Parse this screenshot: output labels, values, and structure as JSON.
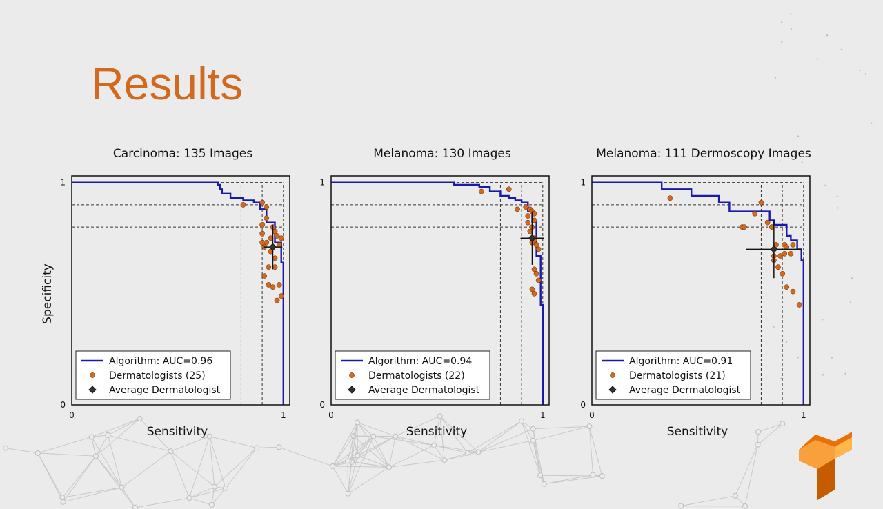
{
  "slide": {
    "title": "Results",
    "colors": {
      "title": "#d2691e",
      "algorithm": "#1a1aaa",
      "dermatologist": "#d2691e",
      "average": "#333333",
      "background": "#ebebeb"
    },
    "logo_icon": "tensorflow-logo-icon"
  },
  "legend": {
    "algorithm_prefix": "Algorithm: ",
    "average_label": "Average Dermatologist"
  },
  "chart_data": [
    {
      "type": "line",
      "title": "Carcinoma: 135 Images",
      "xlabel": "Sensitivity",
      "ylabel": "Specificity",
      "xlim": [
        0,
        1.03
      ],
      "ylim": [
        0,
        1.03
      ],
      "x_ticks": [
        "0",
        "1"
      ],
      "y_ticks": [
        "0",
        "1"
      ],
      "grid": false,
      "legend_position": "lower-left",
      "reference_lines": {
        "vertical": [
          0.8,
          0.9,
          1.0
        ],
        "horizontal": [
          0.9,
          0.8
        ]
      },
      "series": [
        {
          "name": "Algorithm: AUC=0.96",
          "kind": "line",
          "x": [
            0,
            0.69,
            0.69,
            0.7,
            0.7,
            0.71,
            0.71,
            0.75,
            0.75,
            0.81,
            0.81,
            0.86,
            0.86,
            0.89,
            0.89,
            0.92,
            0.92,
            0.96,
            0.96,
            0.99,
            0.99,
            1.0,
            1.0
          ],
          "y": [
            1,
            1,
            0.99,
            0.99,
            0.97,
            0.97,
            0.95,
            0.95,
            0.93,
            0.93,
            0.92,
            0.92,
            0.91,
            0.91,
            0.88,
            0.88,
            0.82,
            0.82,
            0.73,
            0.73,
            0.64,
            0.64,
            0
          ]
        },
        {
          "name": "Dermatologists (25)",
          "kind": "scatter",
          "points": [
            [
              0.81,
              0.9
            ],
            [
              0.9,
              0.91
            ],
            [
              0.92,
              0.89
            ],
            [
              0.9,
              0.81
            ],
            [
              0.9,
              0.77
            ],
            [
              0.9,
              0.73
            ],
            [
              0.91,
              0.71
            ],
            [
              0.92,
              0.73
            ],
            [
              0.92,
              0.84
            ],
            [
              0.94,
              0.75
            ],
            [
              0.96,
              0.78
            ],
            [
              0.96,
              0.66
            ],
            [
              0.93,
              0.62
            ],
            [
              0.91,
              0.58
            ],
            [
              0.96,
              0.62
            ],
            [
              0.93,
              0.54
            ],
            [
              0.95,
              0.53
            ],
            [
              0.98,
              0.54
            ],
            [
              0.99,
              0.49
            ],
            [
              0.97,
              0.47
            ],
            [
              0.98,
              0.72
            ],
            [
              0.97,
              0.76
            ],
            [
              0.95,
              0.8
            ],
            [
              0.94,
              0.69
            ],
            [
              0.99,
              0.75
            ]
          ]
        },
        {
          "name": "Average Dermatologist",
          "kind": "errorbar",
          "x": 0.95,
          "y": 0.71,
          "x_err": 0.045,
          "y_err": 0.1
        }
      ]
    },
    {
      "type": "line",
      "title": "Melanoma: 130 Images",
      "xlabel": "Sensitivity",
      "ylabel": "",
      "xlim": [
        0,
        1.03
      ],
      "ylim": [
        0,
        1.03
      ],
      "x_ticks": [
        "0",
        "1"
      ],
      "y_ticks": [
        "0",
        "1"
      ],
      "grid": false,
      "legend_position": "lower-left",
      "reference_lines": {
        "vertical": [
          0.8,
          0.9,
          1.0
        ],
        "horizontal": [
          0.9,
          0.8
        ]
      },
      "series": [
        {
          "name": "Algorithm: AUC=0.94",
          "kind": "line",
          "x": [
            0,
            0.58,
            0.58,
            0.7,
            0.7,
            0.75,
            0.75,
            0.8,
            0.8,
            0.84,
            0.84,
            0.87,
            0.87,
            0.9,
            0.9,
            0.93,
            0.93,
            0.95,
            0.95,
            0.97,
            0.97,
            0.99,
            0.99,
            1.0,
            1.0
          ],
          "y": [
            1,
            1,
            0.99,
            0.99,
            0.98,
            0.98,
            0.96,
            0.96,
            0.94,
            0.94,
            0.93,
            0.93,
            0.92,
            0.92,
            0.91,
            0.91,
            0.87,
            0.87,
            0.82,
            0.82,
            0.67,
            0.67,
            0.45,
            0.45,
            0
          ]
        },
        {
          "name": "Dermatologists (22)",
          "kind": "scatter",
          "points": [
            [
              0.71,
              0.96
            ],
            [
              0.84,
              0.97
            ],
            [
              0.88,
              0.88
            ],
            [
              0.92,
              0.89
            ],
            [
              0.94,
              0.88
            ],
            [
              0.93,
              0.85
            ],
            [
              0.95,
              0.87
            ],
            [
              0.96,
              0.86
            ],
            [
              0.96,
              0.83
            ],
            [
              0.95,
              0.8
            ],
            [
              0.93,
              0.82
            ],
            [
              0.94,
              0.78
            ],
            [
              0.96,
              0.75
            ],
            [
              0.96,
              0.74
            ],
            [
              0.95,
              0.73
            ],
            [
              0.97,
              0.72
            ],
            [
              0.98,
              0.7
            ],
            [
              0.96,
              0.61
            ],
            [
              0.97,
              0.59
            ],
            [
              0.98,
              0.56
            ],
            [
              0.95,
              0.52
            ],
            [
              0.96,
              0.5
            ]
          ]
        },
        {
          "name": "Average Dermatologist",
          "kind": "errorbar",
          "x": 0.95,
          "y": 0.75,
          "x_err": 0.055,
          "y_err": 0.12
        }
      ]
    },
    {
      "type": "line",
      "title": "Melanoma: 111 Dermoscopy Images",
      "xlabel": "Sensitivity",
      "ylabel": "",
      "xlim": [
        0,
        1.03
      ],
      "ylim": [
        0,
        1.03
      ],
      "x_ticks": [
        "0",
        "1"
      ],
      "y_ticks": [
        "0",
        "1"
      ],
      "grid": false,
      "legend_position": "lower-left",
      "reference_lines": {
        "vertical": [
          0.8,
          0.9,
          1.0
        ],
        "horizontal": [
          0.9,
          0.8
        ]
      },
      "series": [
        {
          "name": "Algorithm: AUC=0.91",
          "kind": "line",
          "x": [
            0,
            0.33,
            0.33,
            0.47,
            0.47,
            0.6,
            0.6,
            0.65,
            0.65,
            0.84,
            0.84,
            0.86,
            0.86,
            0.92,
            0.92,
            0.94,
            0.94,
            0.97,
            0.97,
            0.99,
            0.99,
            1.0,
            1.0
          ],
          "y": [
            1,
            1,
            0.97,
            0.97,
            0.94,
            0.94,
            0.91,
            0.91,
            0.87,
            0.87,
            0.83,
            0.83,
            0.81,
            0.81,
            0.76,
            0.76,
            0.74,
            0.74,
            0.7,
            0.7,
            0.65,
            0.65,
            0
          ]
        },
        {
          "name": "Dermatologists (21)",
          "kind": "scatter",
          "points": [
            [
              0.37,
              0.93
            ],
            [
              0.71,
              0.8
            ],
            [
              0.72,
              0.8
            ],
            [
              0.77,
              0.86
            ],
            [
              0.8,
              0.91
            ],
            [
              0.83,
              0.82
            ],
            [
              0.85,
              0.8
            ],
            [
              0.87,
              0.72
            ],
            [
              0.86,
              0.67
            ],
            [
              0.86,
              0.65
            ],
            [
              0.89,
              0.67
            ],
            [
              0.91,
              0.68
            ],
            [
              0.91,
              0.72
            ],
            [
              0.92,
              0.71
            ],
            [
              0.95,
              0.72
            ],
            [
              0.94,
              0.68
            ],
            [
              0.9,
              0.59
            ],
            [
              0.88,
              0.62
            ],
            [
              0.92,
              0.53
            ],
            [
              0.95,
              0.51
            ],
            [
              0.98,
              0.45
            ]
          ]
        },
        {
          "name": "Average Dermatologist",
          "kind": "errorbar",
          "x": 0.86,
          "y": 0.7,
          "x_err": 0.13,
          "y_err": 0.13
        }
      ]
    }
  ]
}
